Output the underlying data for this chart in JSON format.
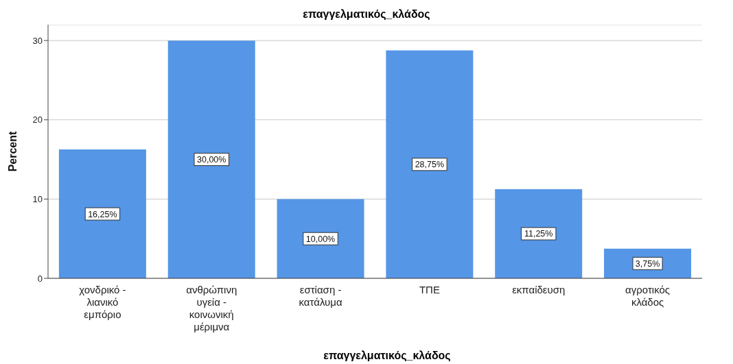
{
  "chart_data": {
    "type": "bar",
    "title": "επαγγελματικός_κλάδος",
    "xlabel": "επαγγελματικός_κλάδος",
    "ylabel": "Percent",
    "categories": [
      "χονδρικό - λιανικό εμπόριο",
      "ανθρώπινη υγεία - κοινωνική μέριμνα",
      "εστίαση - κατάλυμα",
      "ΤΠΕ",
      "εκπαίδευση",
      "αγροτικός κλάδος"
    ],
    "values": [
      16.25,
      30,
      10,
      28.75,
      11.25,
      3.75
    ],
    "value_labels": [
      "16,25%",
      "30,00%",
      "10,00%",
      "28,75%",
      "11,25%",
      "3,75%"
    ],
    "color": "#5596e6",
    "ylim": [
      0,
      32
    ],
    "yticks": [
      0,
      10,
      20,
      30
    ],
    "grid": "y",
    "legend": false
  }
}
